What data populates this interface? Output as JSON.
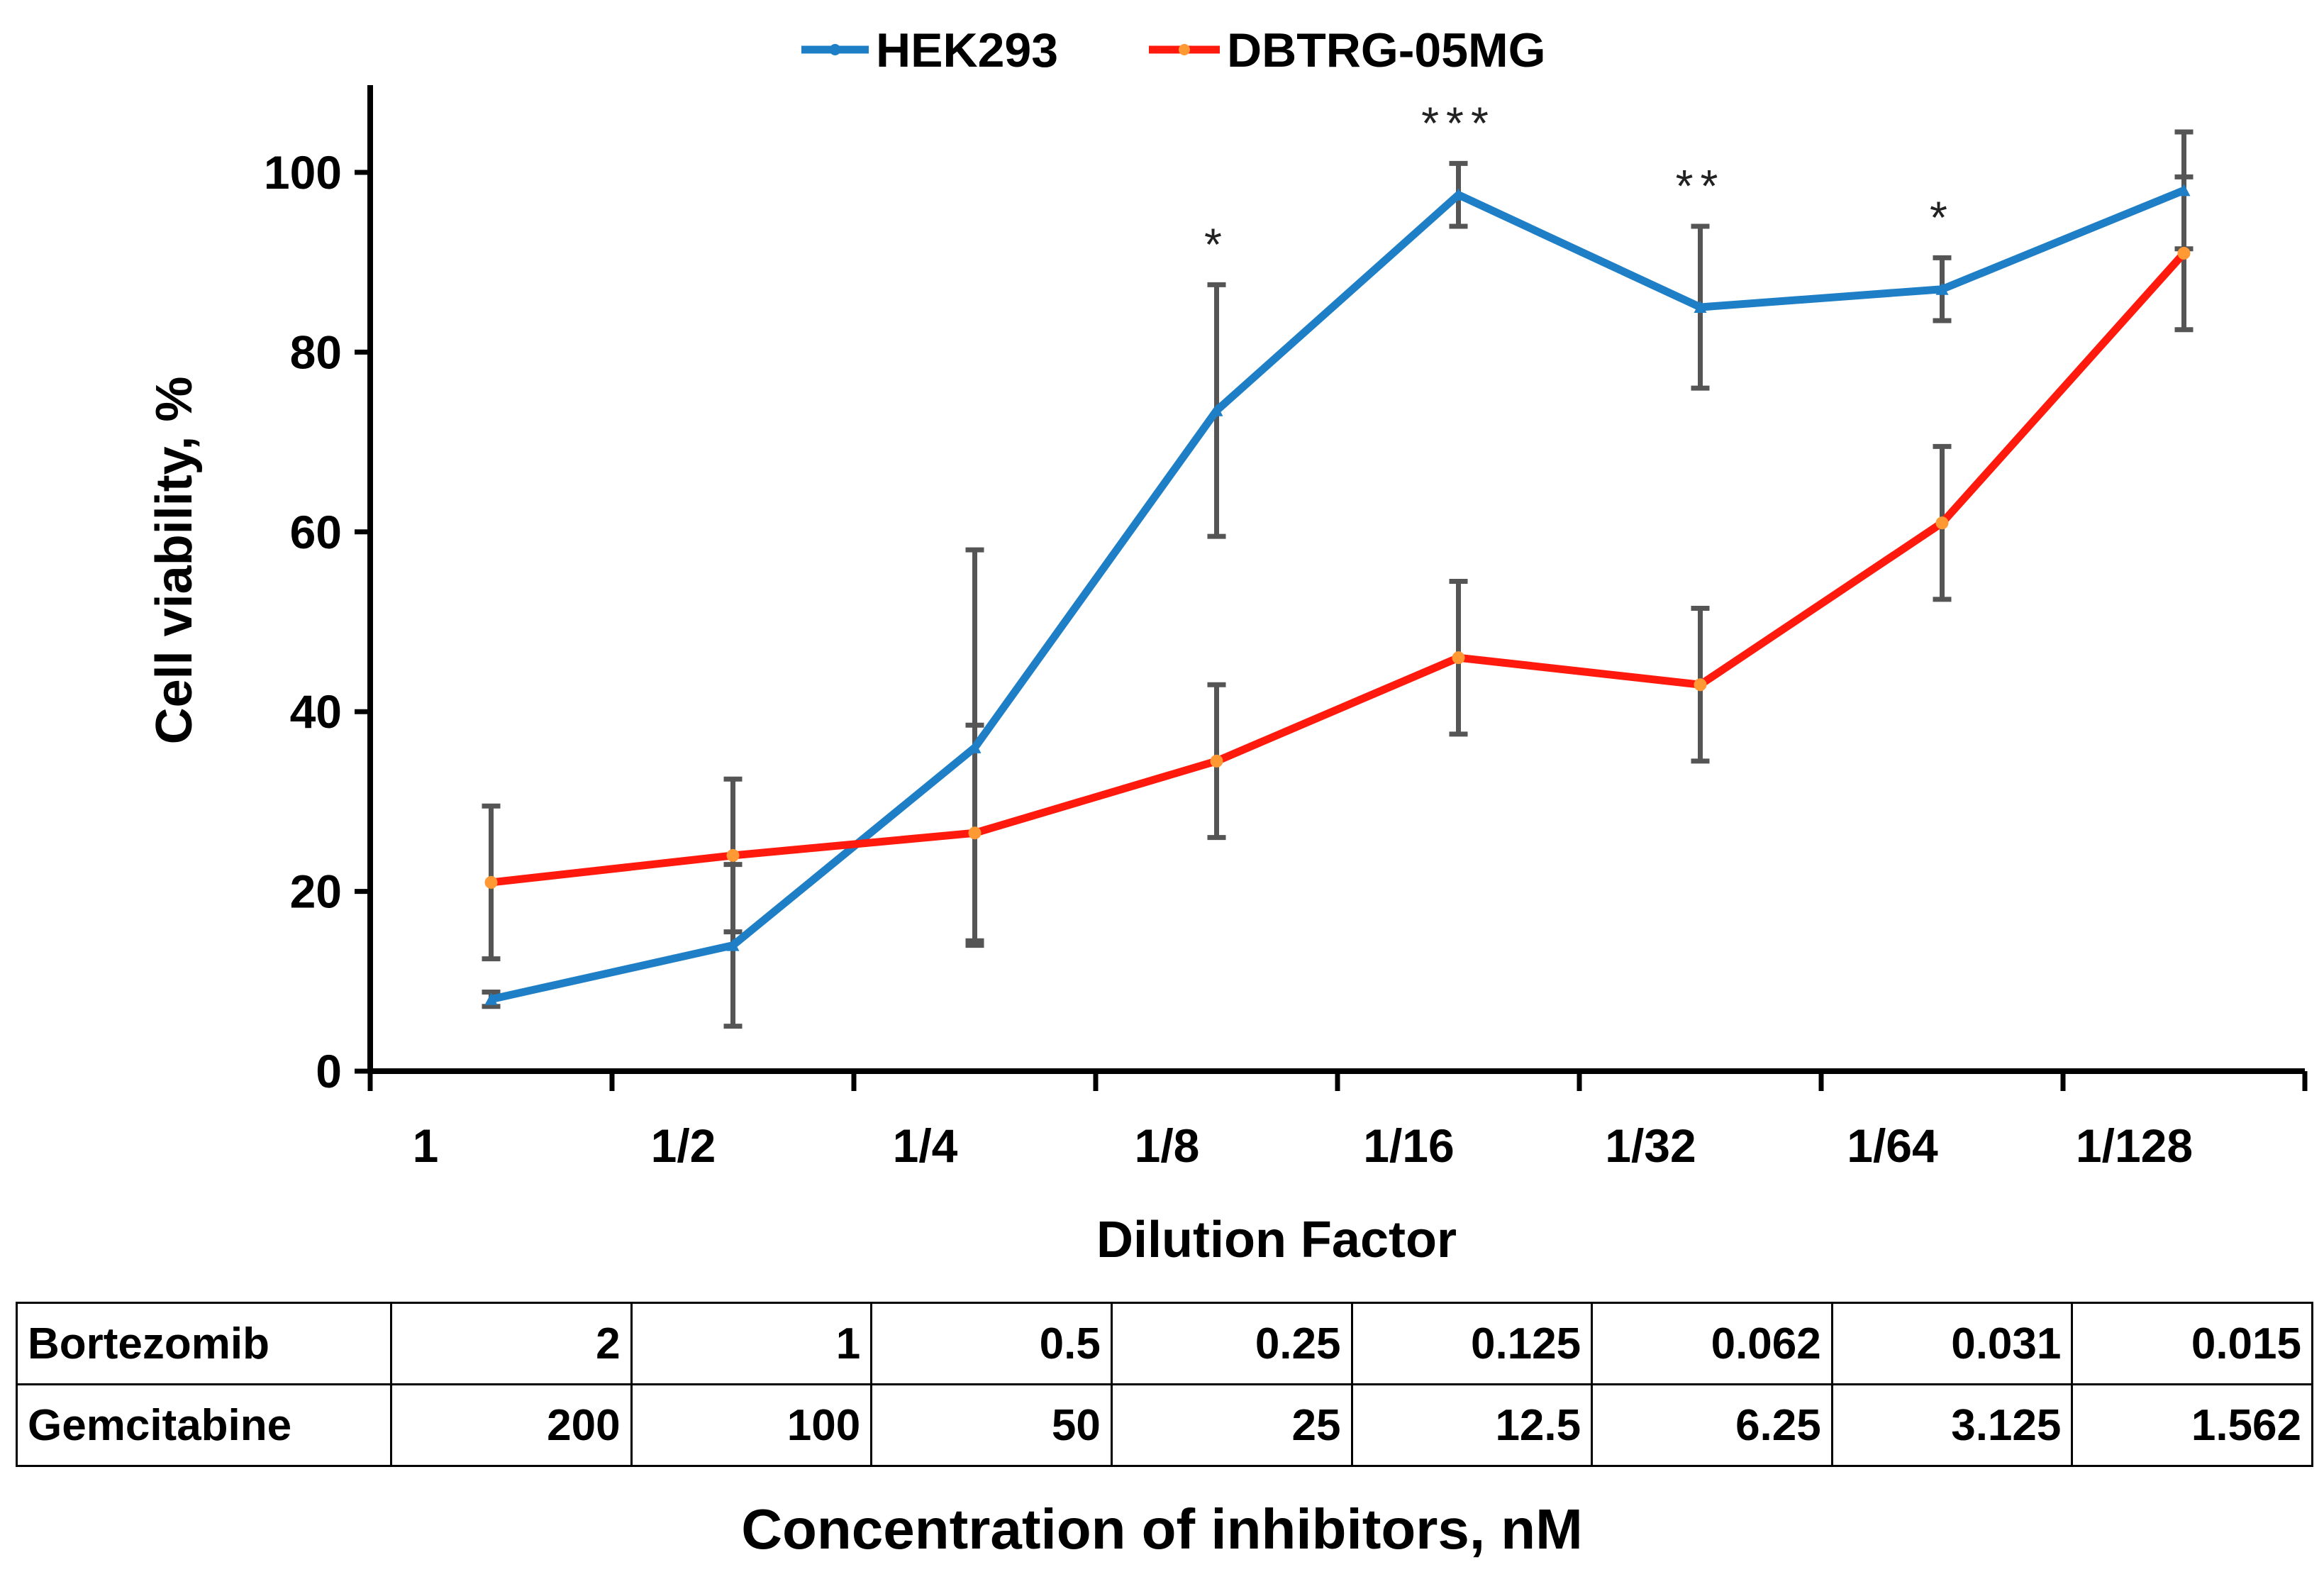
{
  "chart_data": {
    "type": "line",
    "categories": [
      "1",
      "1/2",
      "1/4",
      "1/8",
      "1/16",
      "1/32",
      "1/64",
      "1/128"
    ],
    "xlabel": "Dilution Factor",
    "ylabel": "Cell viability, %",
    "ylim": [
      0,
      110
    ],
    "yticks": [
      0,
      20,
      40,
      60,
      80,
      100
    ],
    "series": [
      {
        "name": "HEK293",
        "color": "#1f7fc6",
        "marker_color": "#1f7fc6",
        "values": [
          8,
          14,
          36,
          73.5,
          97.5,
          85,
          87,
          98
        ],
        "errors": [
          0.8,
          9,
          22,
          14,
          3.5,
          9,
          3.5,
          6.5
        ]
      },
      {
        "name": "DBTRG-05MG",
        "color": "#ff1a0d",
        "marker_color": "#ff9933",
        "values": [
          21,
          24,
          26.5,
          34.5,
          46,
          43,
          61,
          91
        ],
        "errors": [
          8.5,
          8.5,
          12,
          8.5,
          8.5,
          8.5,
          8.5,
          8.5
        ]
      }
    ],
    "significance": [
      {
        "category": "1/8",
        "label": "*"
      },
      {
        "category": "1/16",
        "label": "***"
      },
      {
        "category": "1/32",
        "label": "**"
      },
      {
        "category": "1/64",
        "label": "*"
      }
    ],
    "legend": "top-center"
  },
  "table": {
    "rows": [
      {
        "label": "Bortezomib",
        "values": [
          "2",
          "1",
          "0.5",
          "0.25",
          "0.125",
          "0.062",
          "0.031",
          "0.015"
        ]
      },
      {
        "label": "Gemcitabine",
        "values": [
          "200",
          "100",
          "50",
          "25",
          "12.5",
          "6.25",
          "3.125",
          "1.562"
        ]
      }
    ],
    "title": "Concentration of inhibitors, nM"
  }
}
